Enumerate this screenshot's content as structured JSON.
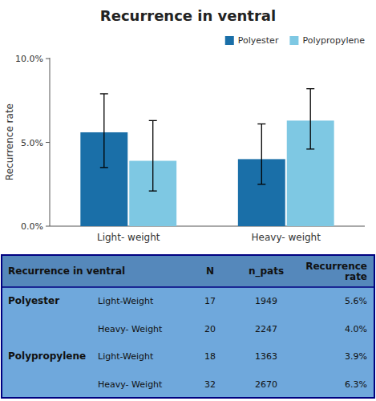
{
  "chart_data": {
    "type": "bar",
    "title": "Recurrence in ventral",
    "y_label": "Recurrence rate",
    "categories": [
      "Light- weight",
      "Heavy- weight"
    ],
    "series": [
      {
        "name": "Polyester",
        "color": "#1a6fa8",
        "values": [
          0.056,
          0.04
        ],
        "errors_low": [
          0.021,
          0.015
        ],
        "errors_high": [
          0.023,
          0.021
        ]
      },
      {
        "name": "Polypropylene",
        "color": "#7ec8e3",
        "values": [
          0.039,
          0.063
        ],
        "errors_low": [
          0.018,
          0.017
        ],
        "errors_high": [
          0.024,
          0.019
        ]
      }
    ],
    "ylim": [
      0.0,
      0.1005
    ],
    "yticks": [
      {
        "value": 0.0,
        "label": "0.0%"
      },
      {
        "value": 0.05,
        "label": "5.0%"
      },
      {
        "value": 0.1,
        "label": "10.0%"
      }
    ],
    "grid": false,
    "legend": "upper right",
    "table": {
      "color": "#6fa8dc",
      "header_color": "#5588bb",
      "columns": [
        "Recurrence in ventral",
        "N",
        "n_pats",
        "Recurrence\nrate"
      ],
      "rows": [
        [
          "Polyester",
          "Light-Weight",
          "17",
          "1949",
          "5.6%"
        ],
        [
          null,
          "Heavy- Weight",
          "20",
          "2247",
          "4.0%"
        ],
        [
          "Polypropylene",
          "Light-Weight",
          "18",
          "1363",
          "3.9%"
        ],
        [
          null,
          "Heavy- Weight",
          "32",
          "2670",
          "6.3%"
        ]
      ]
    }
  }
}
